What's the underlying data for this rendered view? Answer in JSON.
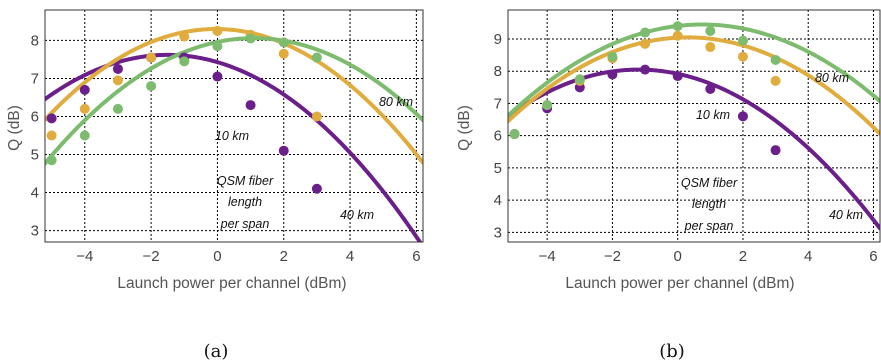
{
  "chart_data": [
    {
      "type": "scatter",
      "caption": "(a)",
      "xlabel": "Launch power per channel (dBm)",
      "ylabel": "Q (dB)",
      "xlim": [
        -5.2,
        6.2
      ],
      "ylim": [
        2.7,
        8.8
      ],
      "xticks": [
        -4,
        -2,
        0,
        2,
        4,
        6
      ],
      "yticks": [
        3,
        4,
        5,
        6,
        7,
        8
      ],
      "grid": true,
      "colors": {
        "10km": "#6b1f8a",
        "40km": "#e0ac3e",
        "80km": "#7dbc6e"
      },
      "series": [
        {
          "key": "10km",
          "name": "10 km",
          "points": [
            [
              -5,
              5.95
            ],
            [
              -4,
              6.7
            ],
            [
              -3,
              7.25
            ],
            [
              -2,
              7.55
            ],
            [
              -1,
              7.55
            ],
            [
              0,
              7.05
            ],
            [
              1,
              6.3
            ],
            [
              2,
              5.1
            ],
            [
              3,
              4.1
            ]
          ],
          "fit": {
            "a": -0.085,
            "h": -1.5,
            "k": 7.62
          }
        },
        {
          "key": "40km",
          "name": "40 km",
          "points": [
            [
              -5,
              5.5
            ],
            [
              -4,
              6.2
            ],
            [
              -3,
              6.95
            ],
            [
              -2,
              7.55
            ],
            [
              -1,
              8.1
            ],
            [
              0,
              8.25
            ],
            [
              1,
              8.15
            ],
            [
              2,
              7.65
            ],
            [
              3,
              6.0
            ]
          ],
          "fit": {
            "a": -0.09,
            "h": -0.05,
            "k": 8.3
          }
        },
        {
          "key": "80km",
          "name": "80 km",
          "points": [
            [
              -5,
              4.85
            ],
            [
              -4,
              5.5
            ],
            [
              -3,
              6.2
            ],
            [
              -2,
              6.8
            ],
            [
              -1,
              7.45
            ],
            [
              0,
              7.85
            ],
            [
              1,
              8.05
            ],
            [
              2,
              7.95
            ],
            [
              3,
              7.55
            ]
          ],
          "fit": {
            "a": -0.083,
            "h": 1.1,
            "k": 8.06
          }
        }
      ],
      "annotations": {
        "km10": "10 km",
        "km40": "40 km",
        "km80": "80 km",
        "legend_line1": "QSM fiber",
        "legend_line2": "length",
        "legend_line3": "per span"
      }
    },
    {
      "type": "scatter",
      "caption": "(b)",
      "xlabel": "Launch power per channel (dBm)",
      "ylabel": "Q (dB)",
      "xlim": [
        -5.2,
        6.2
      ],
      "ylim": [
        2.7,
        9.9
      ],
      "xticks": [
        -4,
        -2,
        0,
        2,
        4,
        6
      ],
      "yticks": [
        3,
        4,
        5,
        6,
        7,
        8,
        9
      ],
      "grid": true,
      "colors": {
        "10km": "#6b1f8a",
        "40km": "#e0ac3e",
        "80km": "#7dbc6e"
      },
      "series": [
        {
          "key": "10km",
          "name": "10 km",
          "points": [
            [
              -5,
              6.05
            ],
            [
              -4,
              6.85
            ],
            [
              -3,
              7.5
            ],
            [
              -2,
              7.9
            ],
            [
              -1,
              8.05
            ],
            [
              0,
              7.85
            ],
            [
              1,
              7.45
            ],
            [
              2,
              6.6
            ],
            [
              3,
              5.55
            ]
          ],
          "fit": {
            "a": -0.09,
            "h": -1.2,
            "k": 8.05
          }
        },
        {
          "key": "40km",
          "name": "40 km",
          "points": [
            [
              -5,
              6.05
            ],
            [
              -4,
              6.95
            ],
            [
              -3,
              7.7
            ],
            [
              -2,
              8.4
            ],
            [
              -1,
              8.85
            ],
            [
              0,
              9.1
            ],
            [
              1,
              8.75
            ],
            [
              2,
              8.45
            ],
            [
              3,
              7.7
            ]
          ],
          "fit": {
            "a": -0.086,
            "h": 0.3,
            "k": 9.05
          }
        },
        {
          "key": "80km",
          "name": "80 km",
          "points": [
            [
              -5,
              6.05
            ],
            [
              -4,
              6.95
            ],
            [
              -3,
              7.75
            ],
            [
              -2,
              8.45
            ],
            [
              -1,
              9.2
            ],
            [
              0,
              9.4
            ],
            [
              1,
              9.25
            ],
            [
              2,
              8.95
            ],
            [
              3,
              8.35
            ]
          ],
          "fit": {
            "a": -0.08,
            "h": 0.75,
            "k": 9.45
          }
        }
      ],
      "annotations": {
        "km10": "10 km",
        "km40": "40 km",
        "km80": "80 km",
        "legend_line1": "QSM fiber",
        "legend_line2": "length",
        "legend_line3": "per span"
      }
    }
  ]
}
